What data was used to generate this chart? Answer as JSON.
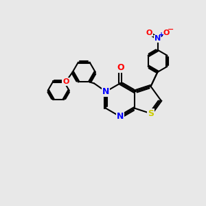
{
  "bg_color": "#e8e8e8",
  "bond_color": "#000000",
  "bond_width": 1.5,
  "atom_colors": {
    "N": "#0000ff",
    "O": "#ff0000",
    "S": "#cccc00"
  },
  "font_size": 9,
  "fig_size": [
    3.0,
    3.0
  ],
  "dpi": 100
}
